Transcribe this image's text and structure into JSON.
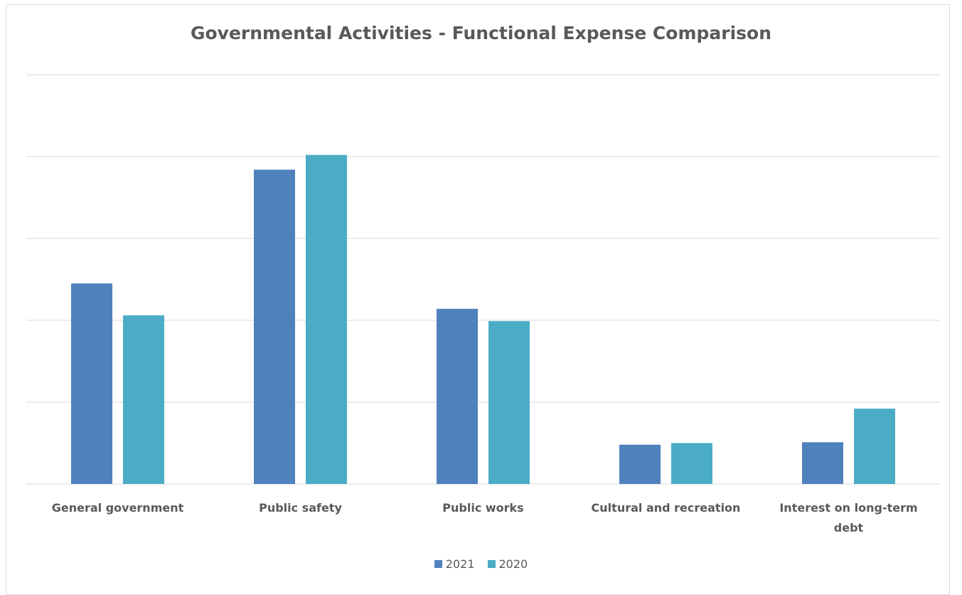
{
  "chart_data": {
    "type": "bar",
    "title": "Governmental Activities - Functional Expense Comparison",
    "xlabel": "",
    "ylabel": "",
    "categories": [
      "General government",
      "Public safety",
      "Public works",
      "Cultural and recreation",
      "Interest on long-term debt"
    ],
    "category_lines": [
      [
        "General government"
      ],
      [
        "Public safety"
      ],
      [
        "Public works"
      ],
      [
        "Cultural and recreation"
      ],
      [
        "Interest on long-term",
        "debt"
      ]
    ],
    "series": [
      {
        "name": "2021",
        "color": "#4f81bd",
        "values": [
          2.45,
          3.84,
          2.14,
          0.48,
          0.51
        ]
      },
      {
        "name": "2020",
        "color": "#4bacc6",
        "values": [
          2.06,
          4.02,
          1.99,
          0.5,
          0.92
        ]
      }
    ],
    "ylim": [
      0,
      5
    ],
    "gridlines": [
      0,
      1,
      2,
      3,
      4,
      5
    ],
    "grid": true,
    "y_tick_labels_shown": false,
    "legend_position": "bottom"
  }
}
